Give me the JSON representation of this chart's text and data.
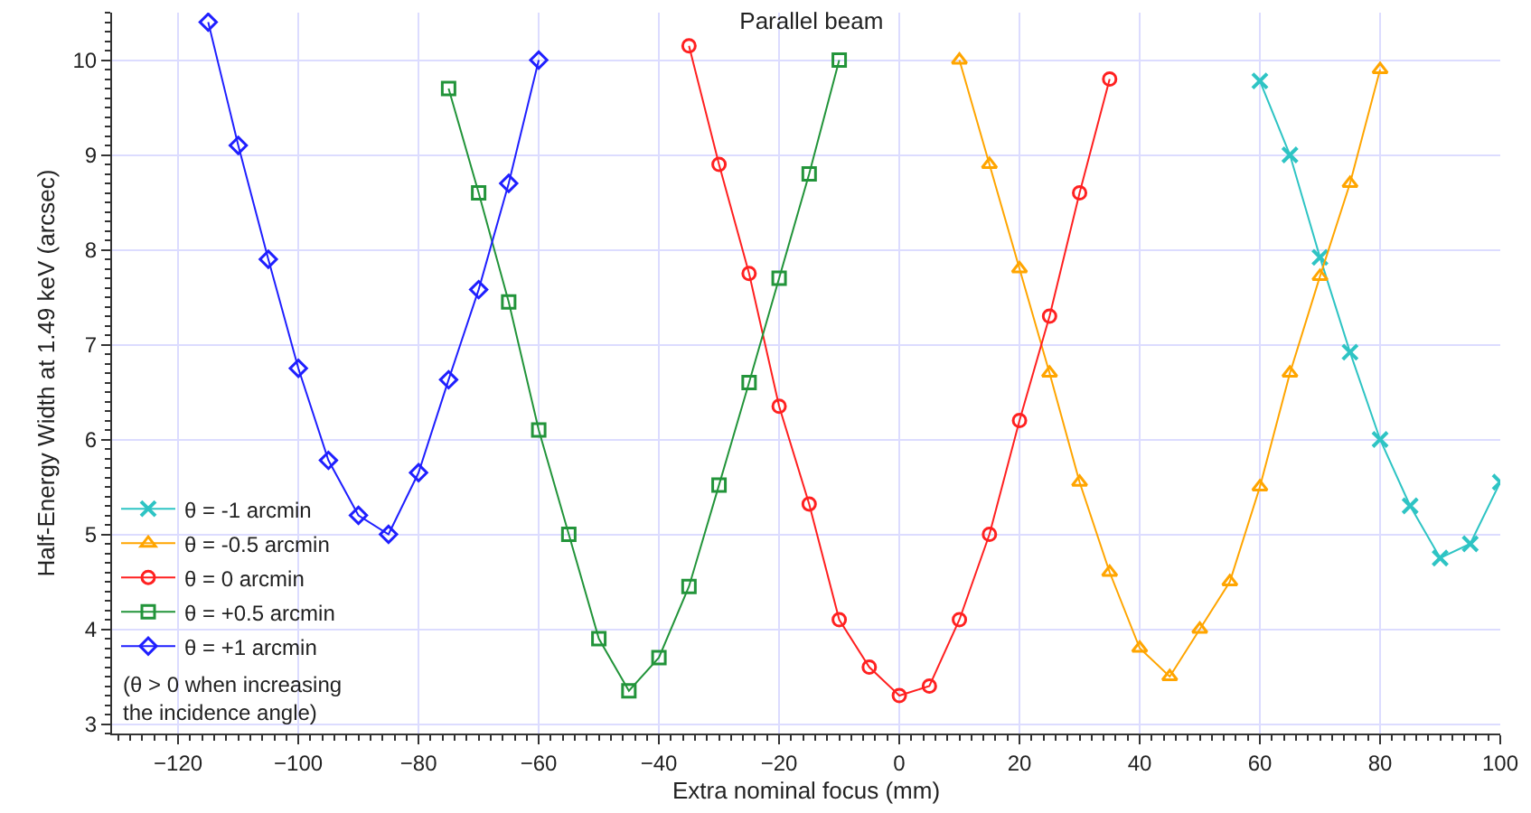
{
  "chart_data": {
    "type": "line",
    "title": "Parallel beam",
    "xlabel": "Extra nominal focus (mm)",
    "ylabel": "Half-Energy Width at 1.49 keV (arcsec)",
    "annotations": [
      "(θ > 0 when increasing\nthe incidence angle)"
    ],
    "xlim": [
      -131,
      100
    ],
    "xticks": [
      -120,
      -100,
      -80,
      -60,
      -40,
      -20,
      0,
      20,
      40,
      60,
      80,
      100
    ],
    "ylim": [
      2.9,
      10.5
    ],
    "yticks": [
      3,
      4,
      5,
      6,
      7,
      8,
      9,
      10
    ],
    "grid": true,
    "legend": "bottom left",
    "series": [
      {
        "name": "θ = -1 arcmin",
        "color": "#2ec4c4",
        "marker": "cross",
        "x": [
          60,
          65,
          70,
          75,
          80,
          85,
          90,
          95,
          100
        ],
        "values": [
          9.78,
          9.0,
          7.92,
          6.92,
          6.0,
          5.3,
          4.75,
          4.9,
          5.55
        ]
      },
      {
        "name": "θ = -0.5 arcmin",
        "color": "#ffa500",
        "marker": "triangle",
        "x": [
          10,
          15,
          20,
          25,
          30,
          35,
          40,
          45,
          50,
          55,
          60,
          65,
          70,
          75,
          80
        ],
        "values": [
          10.0,
          8.9,
          7.8,
          6.7,
          5.55,
          4.6,
          3.8,
          3.5,
          4.0,
          4.5,
          5.5,
          6.7,
          7.72,
          8.7,
          9.9
        ]
      },
      {
        "name": "θ = 0 arcmin",
        "color": "#ff2020",
        "marker": "circle",
        "x": [
          -35,
          -30,
          -25,
          -20,
          -15,
          -10,
          -5,
          0,
          5,
          10,
          15,
          20,
          25,
          30,
          35
        ],
        "values": [
          10.15,
          8.9,
          7.75,
          6.35,
          5.32,
          4.1,
          3.6,
          3.3,
          3.4,
          4.1,
          5.0,
          6.2,
          7.3,
          8.6,
          9.8
        ]
      },
      {
        "name": "θ = +0.5 arcmin",
        "color": "#22943a",
        "marker": "square",
        "x": [
          -75,
          -70,
          -65,
          -60,
          -55,
          -50,
          -45,
          -40,
          -35,
          -30,
          -25,
          -20,
          -15,
          -10
        ],
        "values": [
          9.7,
          8.6,
          7.45,
          6.1,
          5.0,
          3.9,
          3.35,
          3.7,
          4.45,
          5.52,
          6.6,
          7.7,
          8.8,
          10.0
        ]
      },
      {
        "name": "θ = +1 arcmin",
        "color": "#1f1fff",
        "marker": "diamond",
        "x": [
          -115,
          -110,
          -105,
          -100,
          -95,
          -90,
          -85,
          -80,
          -75,
          -70,
          -65,
          -60
        ],
        "values": [
          10.4,
          9.1,
          7.9,
          6.75,
          5.78,
          5.2,
          5.0,
          5.65,
          6.63,
          7.58,
          8.7,
          10.0
        ]
      }
    ]
  }
}
